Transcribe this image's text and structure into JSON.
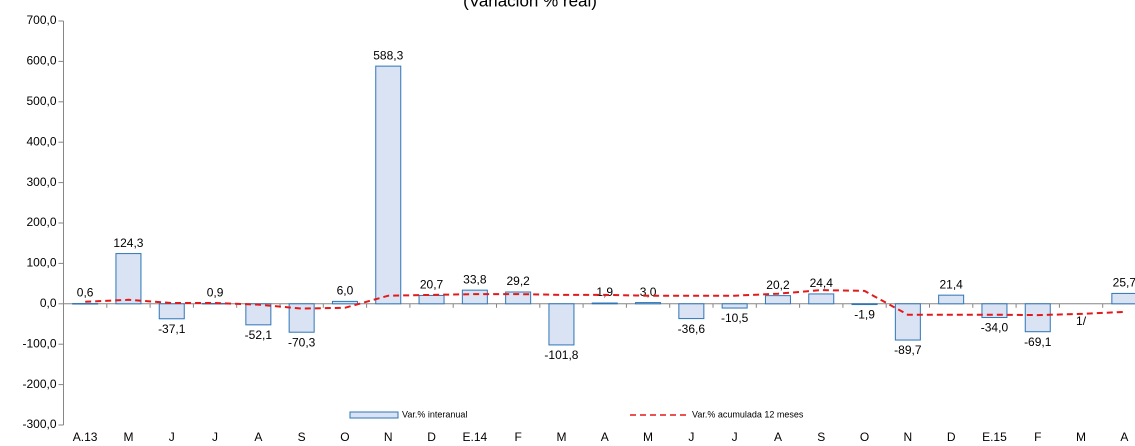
{
  "chart_data": {
    "type": "bar",
    "title": "(Variación % real)",
    "categories": [
      "A.13",
      "M",
      "J",
      "J",
      "A",
      "S",
      "O",
      "N",
      "D",
      "E.14",
      "F",
      "M",
      "A",
      "M",
      "J",
      "J",
      "A",
      "S",
      "O",
      "N",
      "D",
      "E.15",
      "F",
      "M",
      "A"
    ],
    "ylim": [
      -300,
      700
    ],
    "yticks": [
      {
        "value": -300,
        "label": "-300,0"
      },
      {
        "value": -200,
        "label": "-200,0"
      },
      {
        "value": -100,
        "label": "-100,0"
      },
      {
        "value": 0,
        "label": "0,0"
      },
      {
        "value": 100,
        "label": "100,0"
      },
      {
        "value": 200,
        "label": "200,0"
      },
      {
        "value": 300,
        "label": "300,0"
      },
      {
        "value": 400,
        "label": "400,0"
      },
      {
        "value": 500,
        "label": "500,0"
      },
      {
        "value": 600,
        "label": "600,0"
      },
      {
        "value": 700,
        "label": "700,0"
      }
    ],
    "series": [
      {
        "name": "Var.% interanual",
        "type": "bar",
        "color": "#dae3f3",
        "edge_color": "#2e75b6",
        "values": [
          0.6,
          124.3,
          -37.1,
          0.9,
          -52.1,
          -70.3,
          6.0,
          588.3,
          20.7,
          33.8,
          29.2,
          -101.8,
          1.9,
          3.0,
          -36.6,
          -10.5,
          20.2,
          24.4,
          -1.9,
          -89.7,
          21.4,
          -34.0,
          -69.1,
          null,
          25.7
        ],
        "value_labels": [
          "0,6",
          "124,3",
          "-37,1",
          "0,9",
          "-52,1",
          "-70,3",
          "6,0",
          "588,3",
          "20,7",
          "33,8",
          "29,2",
          "-101,8",
          "1,9",
          "3,0",
          "-36,6",
          "-10,5",
          "20,2",
          "24,4",
          "-1,9",
          "-89,7",
          "21,4",
          "-34,0",
          "-69,1",
          "1/",
          "25,7"
        ]
      },
      {
        "name": "Var.% acumulada 12 meses",
        "type": "line",
        "color": "#e31a1c",
        "dashed": true,
        "values": [
          5,
          10,
          2,
          2,
          -2,
          -12,
          -10,
          20,
          22,
          24,
          24,
          22,
          22,
          20,
          20,
          20,
          25,
          34,
          32,
          -27,
          -27,
          -27,
          -28,
          -25,
          -20
        ]
      }
    ]
  }
}
